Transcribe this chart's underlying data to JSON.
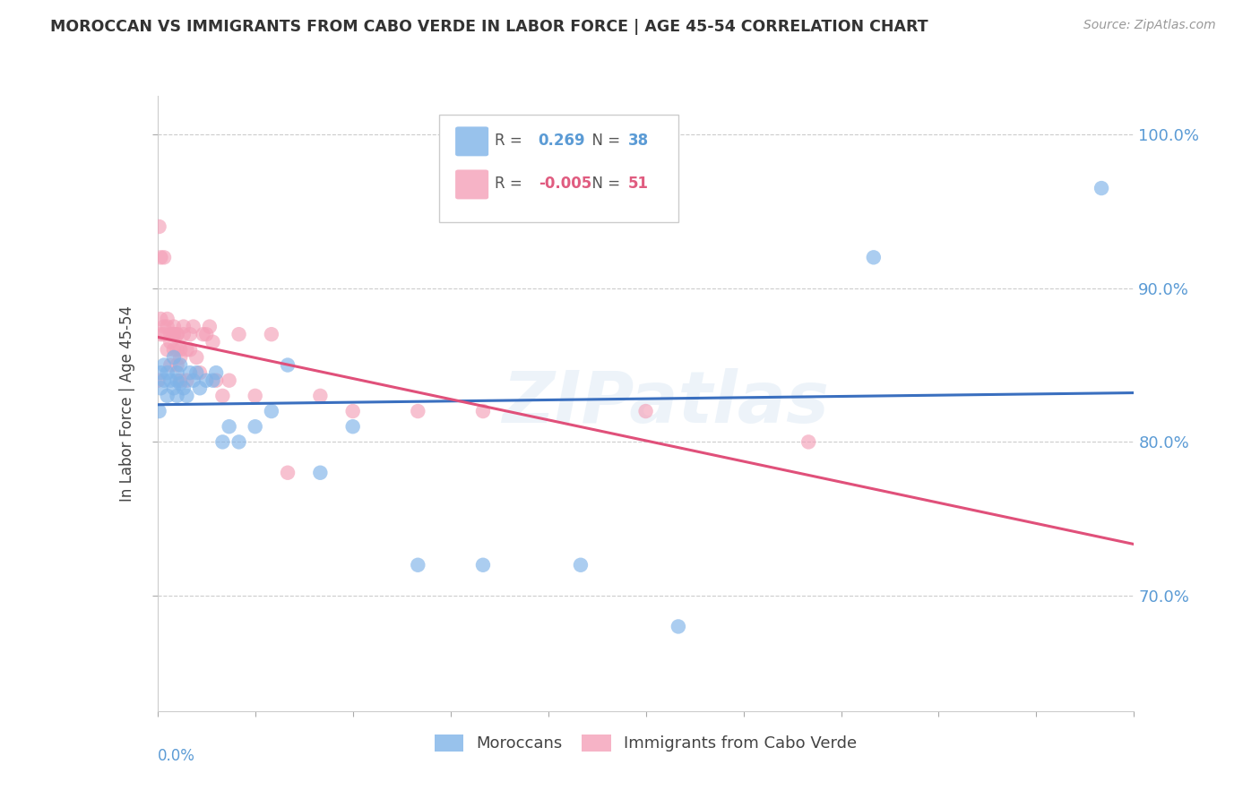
{
  "title": "MOROCCAN VS IMMIGRANTS FROM CABO VERDE IN LABOR FORCE | AGE 45-54 CORRELATION CHART",
  "source": "Source: ZipAtlas.com",
  "ylabel": "In Labor Force | Age 45-54",
  "legend_moroccan": "Moroccans",
  "legend_caboverde": "Immigrants from Cabo Verde",
  "R_moroccan": 0.269,
  "N_moroccan": 38,
  "R_caboverde": -0.005,
  "N_caboverde": 51,
  "moroccan_color": "#7fb3e8",
  "caboverde_color": "#f4a0b8",
  "trend_moroccan_color": "#3a6fbf",
  "trend_caboverde_color": "#e0507a",
  "xmin": 0.0,
  "xmax": 0.3,
  "ymin": 0.625,
  "ymax": 1.025,
  "y_ticks": [
    0.7,
    0.8,
    0.9,
    1.0
  ],
  "y_tick_labels": [
    "70.0%",
    "80.0%",
    "90.0%",
    "100.0%"
  ],
  "moroccan_x": [
    0.0005,
    0.001,
    0.001,
    0.002,
    0.002,
    0.003,
    0.003,
    0.004,
    0.005,
    0.005,
    0.006,
    0.006,
    0.006,
    0.007,
    0.007,
    0.008,
    0.009,
    0.01,
    0.011,
    0.012,
    0.013,
    0.015,
    0.017,
    0.018,
    0.02,
    0.022,
    0.025,
    0.03,
    0.035,
    0.04,
    0.05,
    0.06,
    0.08,
    0.1,
    0.13,
    0.16,
    0.22,
    0.29
  ],
  "moroccan_y": [
    0.82,
    0.835,
    0.845,
    0.84,
    0.85,
    0.83,
    0.845,
    0.84,
    0.855,
    0.835,
    0.845,
    0.84,
    0.83,
    0.85,
    0.838,
    0.835,
    0.83,
    0.845,
    0.84,
    0.845,
    0.835,
    0.84,
    0.84,
    0.845,
    0.8,
    0.81,
    0.8,
    0.81,
    0.82,
    0.85,
    0.78,
    0.81,
    0.72,
    0.72,
    0.72,
    0.68,
    0.92,
    0.965
  ],
  "caboverde_x": [
    0.0002,
    0.0005,
    0.001,
    0.001,
    0.001,
    0.002,
    0.002,
    0.002,
    0.003,
    0.003,
    0.003,
    0.004,
    0.004,
    0.004,
    0.005,
    0.005,
    0.005,
    0.005,
    0.006,
    0.006,
    0.006,
    0.006,
    0.007,
    0.007,
    0.007,
    0.008,
    0.008,
    0.009,
    0.009,
    0.01,
    0.01,
    0.011,
    0.012,
    0.013,
    0.014,
    0.015,
    0.016,
    0.017,
    0.018,
    0.02,
    0.022,
    0.025,
    0.03,
    0.035,
    0.04,
    0.05,
    0.06,
    0.08,
    0.1,
    0.15,
    0.2
  ],
  "caboverde_y": [
    0.84,
    0.94,
    0.87,
    0.92,
    0.88,
    0.92,
    0.875,
    0.87,
    0.875,
    0.88,
    0.86,
    0.87,
    0.865,
    0.85,
    0.875,
    0.87,
    0.86,
    0.87,
    0.87,
    0.86,
    0.85,
    0.87,
    0.86,
    0.855,
    0.84,
    0.875,
    0.87,
    0.86,
    0.84,
    0.86,
    0.87,
    0.875,
    0.855,
    0.845,
    0.87,
    0.87,
    0.875,
    0.865,
    0.84,
    0.83,
    0.84,
    0.87,
    0.83,
    0.87,
    0.78,
    0.83,
    0.82,
    0.82,
    0.82,
    0.82,
    0.8
  ]
}
